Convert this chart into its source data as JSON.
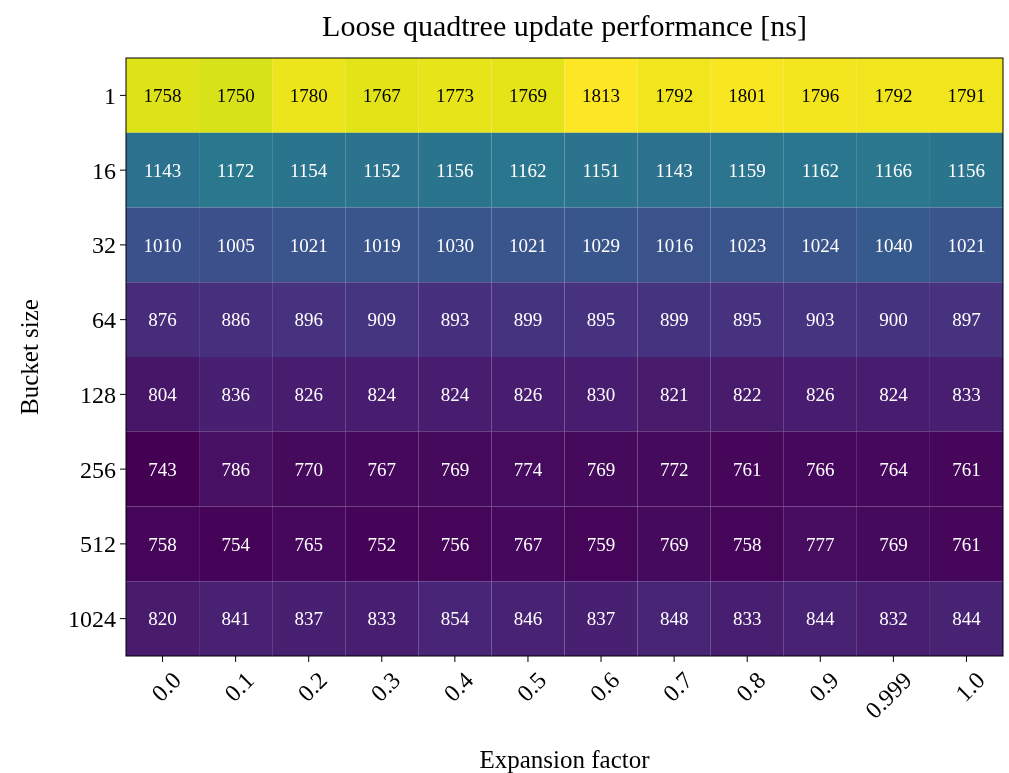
{
  "chart_data": {
    "type": "heatmap",
    "title": "Loose quadtree update performance [ns]",
    "xlabel": "Expansion factor",
    "ylabel": "Bucket size",
    "categories": [
      "0.0",
      "0.1",
      "0.2",
      "0.3",
      "0.4",
      "0.5",
      "0.6",
      "0.7",
      "0.8",
      "0.9",
      "0.999",
      "1.0"
    ],
    "y_categories": [
      "1",
      "16",
      "32",
      "64",
      "128",
      "256",
      "512",
      "1024"
    ],
    "cells": [
      [
        1758,
        1750,
        1780,
        1767,
        1773,
        1769,
        1813,
        1792,
        1801,
        1796,
        1792,
        1791
      ],
      [
        1143,
        1172,
        1154,
        1152,
        1156,
        1162,
        1151,
        1143,
        1159,
        1162,
        1166,
        1156
      ],
      [
        1010,
        1005,
        1021,
        1019,
        1030,
        1021,
        1029,
        1016,
        1023,
        1024,
        1040,
        1021
      ],
      [
        876,
        886,
        896,
        909,
        893,
        899,
        895,
        899,
        895,
        903,
        900,
        897
      ],
      [
        804,
        836,
        826,
        824,
        824,
        826,
        830,
        821,
        822,
        826,
        824,
        833
      ],
      [
        743,
        786,
        770,
        767,
        769,
        774,
        769,
        772,
        761,
        766,
        764,
        761
      ],
      [
        758,
        754,
        765,
        752,
        756,
        767,
        759,
        769,
        758,
        777,
        769,
        761
      ],
      [
        820,
        841,
        837,
        833,
        854,
        846,
        837,
        848,
        833,
        844,
        832,
        844
      ]
    ],
    "data_labels": true
  }
}
